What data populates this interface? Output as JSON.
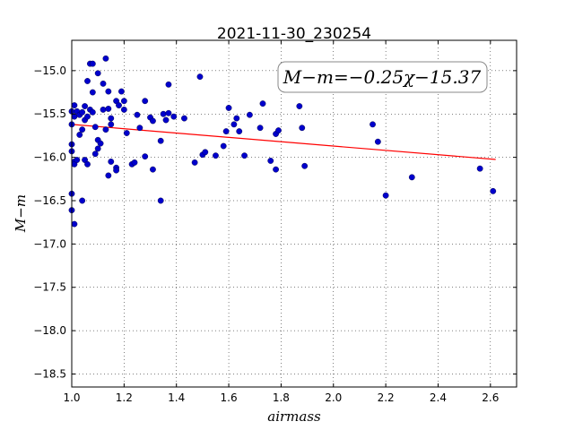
{
  "chart_data": {
    "type": "scatter",
    "title": "2021-11-30_230254",
    "xlabel": "airmass",
    "ylabel": "M−m",
    "xlim": [
      1.0,
      2.7
    ],
    "ylim": [
      -18.65,
      -14.65
    ],
    "y_inverted": true,
    "grid": true,
    "x_ticks": [
      1.0,
      1.2,
      1.4,
      1.6,
      1.8,
      2.0,
      2.2,
      2.4,
      2.6
    ],
    "x_tick_labels": [
      "1.0",
      "1.2",
      "1.4",
      "1.6",
      "1.8",
      "2.0",
      "2.2",
      "2.4",
      "2.6"
    ],
    "y_ticks": [
      -15.0,
      -15.5,
      -16.0,
      -16.5,
      -17.0,
      -17.5,
      -18.0,
      -18.5
    ],
    "y_tick_labels": [
      "−15.0",
      "−15.5",
      "−16.0",
      "−16.5",
      "−17.0",
      "−17.5",
      "−18.0",
      "−18.5"
    ],
    "annotation": "M−m=−0.25χ−15.37",
    "fit": {
      "slope": -0.25,
      "intercept": -15.37,
      "x_range": [
        1.0,
        2.62
      ],
      "color": "#ff0000"
    },
    "point_color": "#0000cc",
    "points": [
      [
        1.0,
        -16.42
      ],
      [
        1.0,
        -16.61
      ],
      [
        1.01,
        -16.77
      ],
      [
        1.0,
        -15.85
      ],
      [
        1.0,
        -15.93
      ],
      [
        1.0,
        -15.62
      ],
      [
        1.0,
        -15.47
      ],
      [
        1.01,
        -15.4
      ],
      [
        1.01,
        -15.53
      ],
      [
        1.02,
        -15.47
      ],
      [
        1.01,
        -16.05
      ],
      [
        1.01,
        -16.08
      ],
      [
        1.02,
        -16.03
      ],
      [
        1.03,
        -15.74
      ],
      [
        1.03,
        -15.51
      ],
      [
        1.04,
        -15.48
      ],
      [
        1.04,
        -15.68
      ],
      [
        1.04,
        -16.5
      ],
      [
        1.05,
        -15.41
      ],
      [
        1.05,
        -15.57
      ],
      [
        1.05,
        -16.03
      ],
      [
        1.06,
        -15.12
      ],
      [
        1.06,
        -15.53
      ],
      [
        1.06,
        -16.08
      ],
      [
        1.07,
        -14.92
      ],
      [
        1.07,
        -15.45
      ],
      [
        1.08,
        -14.92
      ],
      [
        1.08,
        -15.25
      ],
      [
        1.08,
        -15.48
      ],
      [
        1.09,
        -15.65
      ],
      [
        1.09,
        -15.96
      ],
      [
        1.1,
        -15.03
      ],
      [
        1.1,
        -15.8
      ],
      [
        1.1,
        -15.9
      ],
      [
        1.11,
        -15.84
      ],
      [
        1.12,
        -15.15
      ],
      [
        1.12,
        -15.45
      ],
      [
        1.13,
        -15.68
      ],
      [
        1.13,
        -14.86
      ],
      [
        1.14,
        -15.24
      ],
      [
        1.14,
        -15.44
      ],
      [
        1.14,
        -16.21
      ],
      [
        1.15,
        -15.62
      ],
      [
        1.15,
        -16.05
      ],
      [
        1.15,
        -15.55
      ],
      [
        1.17,
        -16.12
      ],
      [
        1.17,
        -16.15
      ],
      [
        1.17,
        -15.35
      ],
      [
        1.18,
        -15.4
      ],
      [
        1.19,
        -15.24
      ],
      [
        1.2,
        -15.35
      ],
      [
        1.2,
        -15.45
      ],
      [
        1.21,
        -15.72
      ],
      [
        1.23,
        -16.08
      ],
      [
        1.24,
        -16.06
      ],
      [
        1.25,
        -15.51
      ],
      [
        1.26,
        -15.66
      ],
      [
        1.28,
        -15.35
      ],
      [
        1.28,
        -15.99
      ],
      [
        1.3,
        -15.54
      ],
      [
        1.31,
        -15.58
      ],
      [
        1.31,
        -16.14
      ],
      [
        1.34,
        -15.81
      ],
      [
        1.34,
        -16.5
      ],
      [
        1.35,
        -15.5
      ],
      [
        1.36,
        -15.57
      ],
      [
        1.37,
        -15.16
      ],
      [
        1.37,
        -15.49
      ],
      [
        1.39,
        -15.53
      ],
      [
        1.43,
        -15.55
      ],
      [
        1.47,
        -16.06
      ],
      [
        1.49,
        -15.07
      ],
      [
        1.5,
        -15.97
      ],
      [
        1.51,
        -15.94
      ],
      [
        1.55,
        -15.98
      ],
      [
        1.58,
        -15.87
      ],
      [
        1.59,
        -15.7
      ],
      [
        1.6,
        -15.43
      ],
      [
        1.62,
        -15.62
      ],
      [
        1.63,
        -15.55
      ],
      [
        1.64,
        -15.7
      ],
      [
        1.66,
        -15.98
      ],
      [
        1.68,
        -15.51
      ],
      [
        1.72,
        -15.66
      ],
      [
        1.73,
        -15.38
      ],
      [
        1.76,
        -16.04
      ],
      [
        1.78,
        -16.14
      ],
      [
        1.78,
        -15.73
      ],
      [
        1.79,
        -15.69
      ],
      [
        1.87,
        -15.41
      ],
      [
        1.88,
        -15.66
      ],
      [
        1.89,
        -16.1
      ],
      [
        2.15,
        -15.62
      ],
      [
        2.17,
        -15.82
      ],
      [
        2.2,
        -16.44
      ],
      [
        2.3,
        -16.23
      ],
      [
        2.56,
        -16.13
      ],
      [
        2.61,
        -16.39
      ]
    ]
  }
}
